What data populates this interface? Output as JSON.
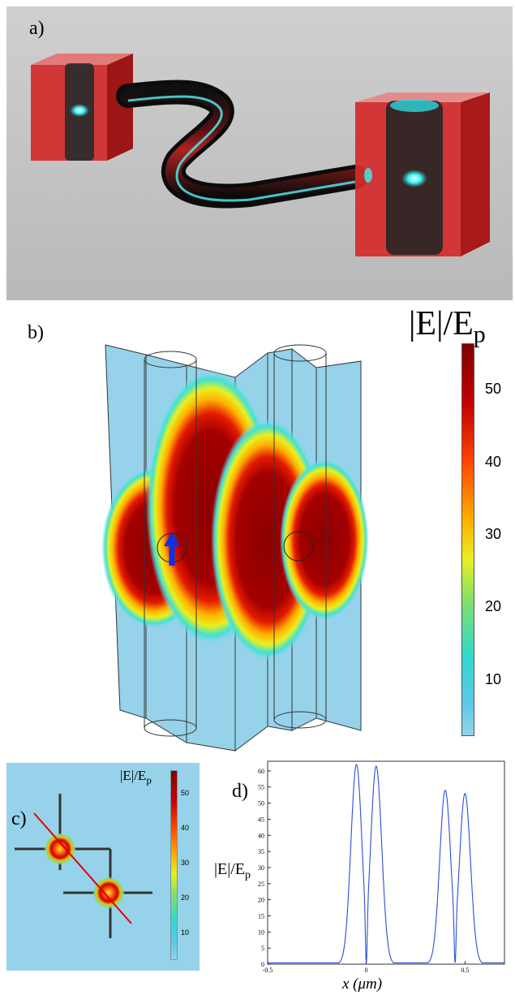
{
  "panels": {
    "a": {
      "label": "a)"
    },
    "b": {
      "label": "b)",
      "colorbar": {
        "title_main": "|E|/E",
        "title_sub": "p",
        "ticks": [
          "50",
          "40",
          "30",
          "20",
          "10"
        ]
      }
    },
    "c": {
      "label": "c)",
      "colorbar": {
        "title_main": "|E|/E",
        "title_sub": "p",
        "ticks": [
          "50",
          "40",
          "30",
          "20",
          "10"
        ]
      }
    },
    "d": {
      "label": "d)"
    }
  },
  "chart_data": {
    "type": "line",
    "ylabel_main": "|E|/E",
    "ylabel_sub": "p",
    "xlabel": "x (μm)",
    "xlim": [
      -0.5,
      0.7
    ],
    "ylim": [
      0,
      63
    ],
    "xticks": [
      -0.5,
      0,
      0.5
    ],
    "yticks": [
      0,
      5,
      10,
      15,
      20,
      25,
      30,
      35,
      40,
      45,
      50,
      55,
      60
    ],
    "grid": false,
    "line_color": "#2b4fd6",
    "peaks": [
      {
        "x": -0.05,
        "y": 62
      },
      {
        "x": 0.05,
        "y": 61.5
      },
      {
        "x": 0.4,
        "y": 54
      },
      {
        "x": 0.5,
        "y": 53
      }
    ],
    "dips": [
      {
        "x": 0.0,
        "y": 0.5
      },
      {
        "x": 0.45,
        "y": 0.5
      }
    ],
    "baseline": 0.4
  }
}
